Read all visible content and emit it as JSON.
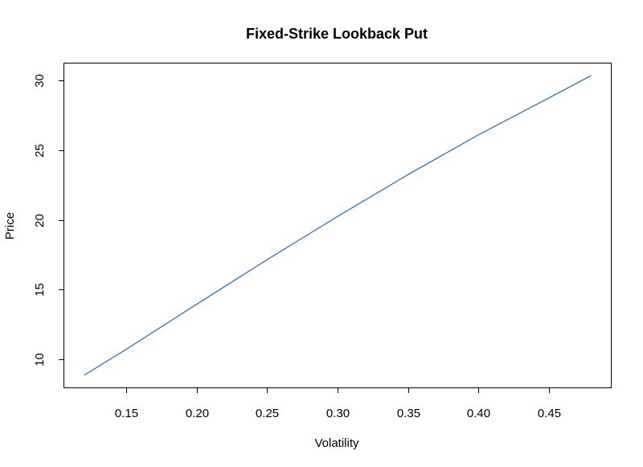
{
  "chart_data": {
    "type": "line",
    "title": "Fixed-Strike Lookback Put",
    "xlabel": "Volatility",
    "ylabel": "Price",
    "xlim": [
      0.106,
      0.494
    ],
    "ylim": [
      7.98,
      31.22
    ],
    "x_ticks": [
      0.15,
      0.2,
      0.25,
      0.3,
      0.35,
      0.4,
      0.45
    ],
    "x_tick_labels": [
      "0.15",
      "0.20",
      "0.25",
      "0.30",
      "0.35",
      "0.40",
      "0.45"
    ],
    "y_ticks": [
      10,
      15,
      20,
      25,
      30
    ],
    "y_tick_labels": [
      "10",
      "15",
      "20",
      "25",
      "30"
    ],
    "grid": false,
    "series": [
      {
        "color": "#2266bb",
        "x": [
          0.12,
          0.15,
          0.2,
          0.25,
          0.3,
          0.35,
          0.4,
          0.45,
          0.48
        ],
        "y": [
          8.85,
          10.72,
          13.95,
          17.15,
          20.25,
          23.25,
          26.1,
          28.75,
          30.35
        ]
      }
    ]
  }
}
